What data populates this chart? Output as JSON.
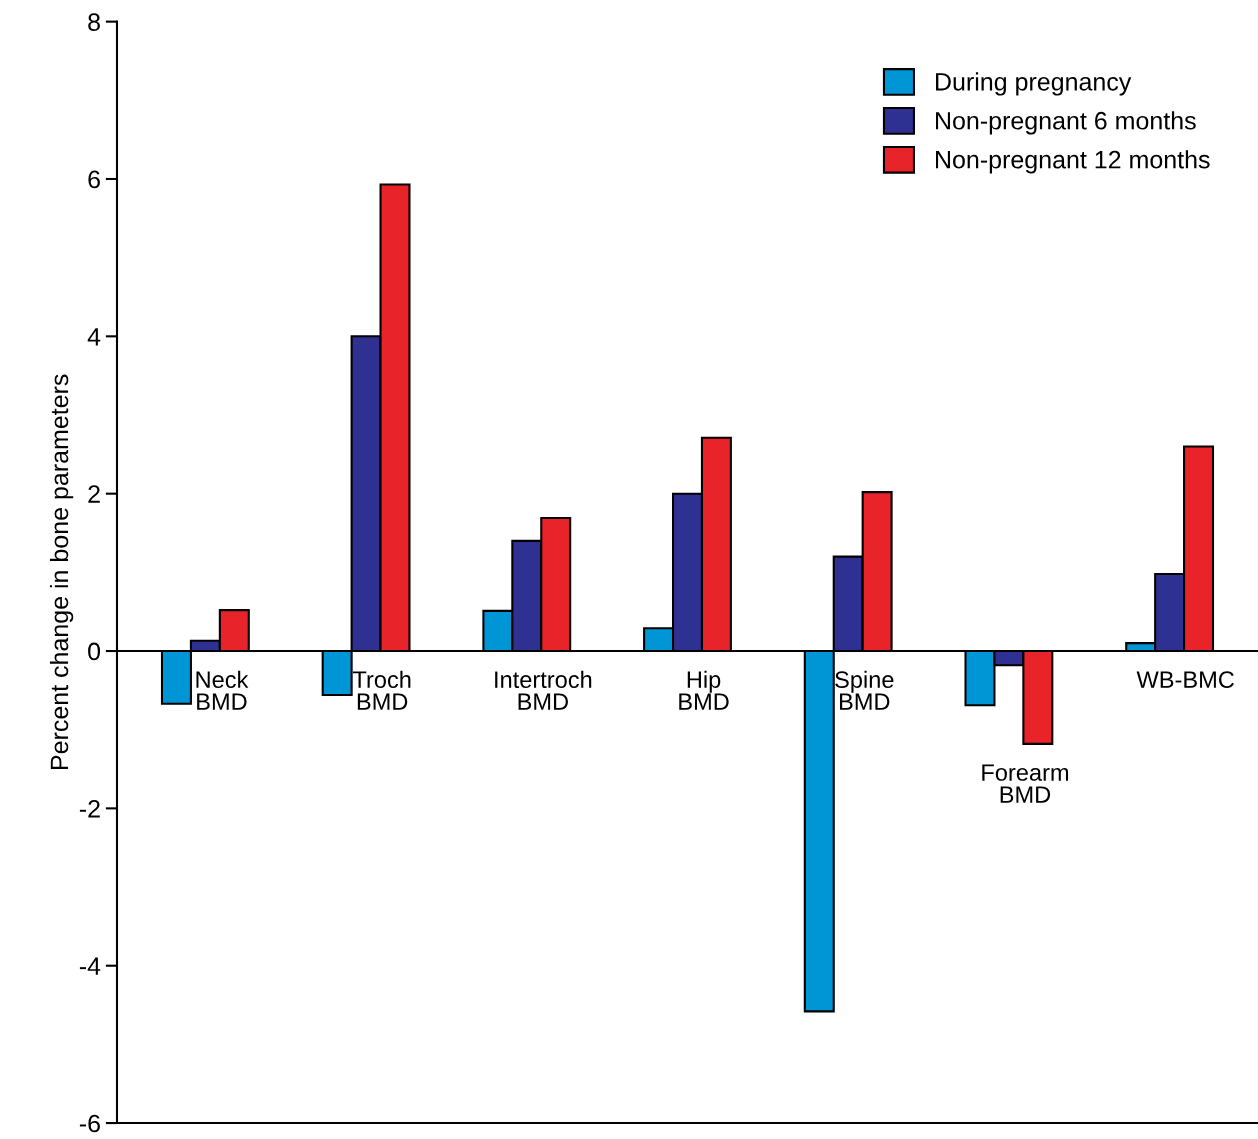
{
  "chart_data": {
    "type": "bar",
    "ylabel": "Percent change in bone parameters",
    "categories": [
      "Neck\nBMD",
      "Troch\nBMD",
      "Intertroch\nBMD",
      "Hip\nBMD",
      "Spine\nBMD",
      "Forearm\nBMD",
      "WB-BMC"
    ],
    "series": [
      {
        "name": "During pregnancy",
        "color": "#0096d6",
        "values": [
          -0.67,
          -0.56,
          0.51,
          0.29,
          -4.58,
          -0.69,
          0.1
        ]
      },
      {
        "name": "Non-pregnant 6 months",
        "color": "#2e3192",
        "values": [
          0.13,
          4.0,
          1.4,
          2.0,
          1.2,
          -0.18,
          0.98
        ]
      },
      {
        "name": "Non-pregnant 12 months",
        "color": "#e8232a",
        "values": [
          0.52,
          5.93,
          1.69,
          2.71,
          2.02,
          -1.18,
          2.6
        ]
      }
    ],
    "ylim": [
      -6,
      8
    ],
    "yticks": [
      -6,
      -4,
      -2,
      0,
      2,
      4,
      6,
      8
    ],
    "grid": false,
    "legend": "top right"
  }
}
